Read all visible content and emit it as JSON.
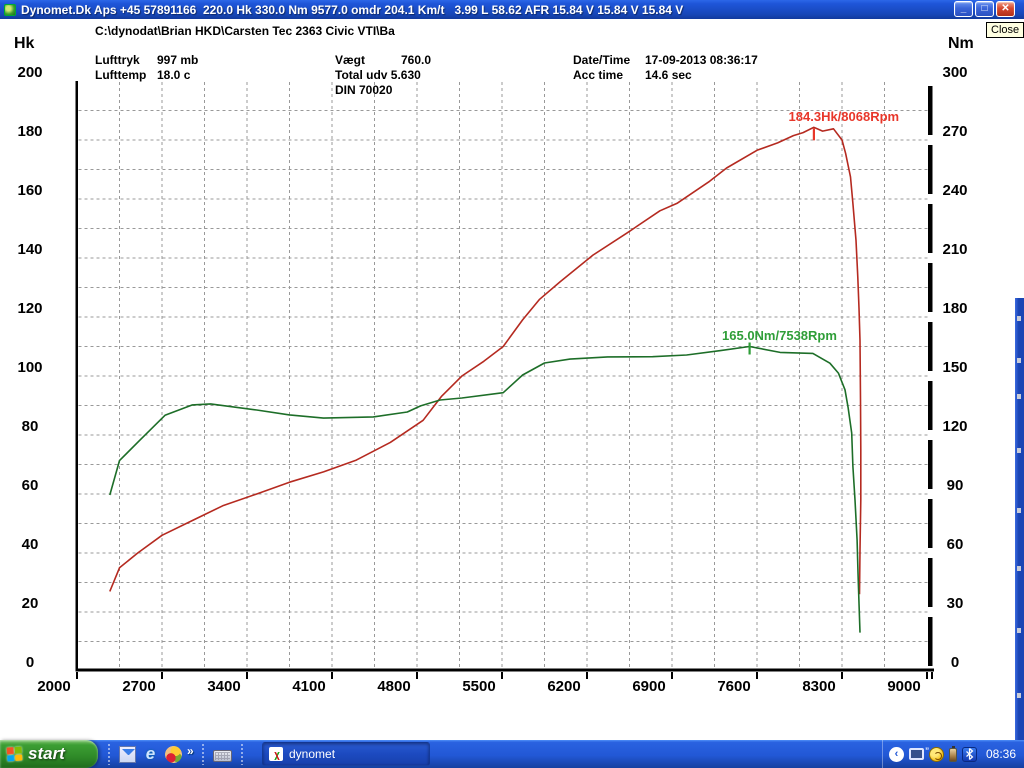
{
  "window": {
    "title": "Dynomet.Dk Aps +45 57891166  220.0 Hk 330.0 Nm 9577.0 omdr 204.1 Km/t   3.99 L 58.62 AFR 15.84 V 15.84 V 15.84 V",
    "minimize_glyph": "_",
    "maximize_glyph": "□",
    "close_glyph": "✕",
    "close_tooltip": "Close"
  },
  "header": {
    "path": "C:\\dynodat\\Brian HKD\\Carsten Tec 2363 Civic VTI\\Ba",
    "lufttryk_label": "Lufttryk",
    "lufttryk_value": "997 mb",
    "lufttemp_label": "Lufttemp",
    "lufttemp_value": "18.0 c",
    "vaegt_label": "Vægt",
    "vaegt_value": "760.0",
    "total_udv_label": "Total udv",
    "total_udv_value": "5.630",
    "din_label": "DIN 70020",
    "datetime_label": "Date/Time",
    "datetime_value": "17-09-2013 08:36:17",
    "acctime_label": "Acc time",
    "acctime_value": "14.6 sec"
  },
  "chart_data": {
    "type": "line",
    "x_axis": {
      "unit": "Rpm",
      "range": [
        2000,
        9030
      ],
      "ticks": [
        2000,
        2700,
        3400,
        4100,
        4800,
        5500,
        6200,
        6900,
        7600,
        8300,
        9000
      ],
      "minor_step": 350
    },
    "y_axis_left": {
      "label": "Hk",
      "range": [
        0,
        200
      ],
      "ticks": [
        0,
        20,
        40,
        60,
        80,
        100,
        120,
        140,
        160,
        180,
        200
      ],
      "minor_step": 10
    },
    "y_axis_right": {
      "label": "Nm",
      "range": [
        0,
        300
      ],
      "ticks": [
        0,
        30,
        60,
        90,
        120,
        150,
        180,
        210,
        240,
        270,
        300
      ],
      "minor_step": 15
    },
    "grid": true,
    "series": [
      {
        "name": "power",
        "unit": "Hk",
        "axis": "left",
        "color": "#b52a20",
        "label_color": "#e8372a",
        "peak_label": "184.3Hk/8068Rpm",
        "peak": {
          "rpm": 8068,
          "value": 184.3
        },
        "points": [
          [
            2270,
            27
          ],
          [
            2350,
            35
          ],
          [
            2500,
            40
          ],
          [
            2700,
            46
          ],
          [
            2950,
            51
          ],
          [
            3200,
            56
          ],
          [
            3480,
            60
          ],
          [
            3750,
            64
          ],
          [
            4030,
            67.5
          ],
          [
            4300,
            71.5
          ],
          [
            4580,
            77.5
          ],
          [
            4850,
            85
          ],
          [
            5000,
            93
          ],
          [
            5170,
            100
          ],
          [
            5350,
            105
          ],
          [
            5510,
            110
          ],
          [
            5670,
            119
          ],
          [
            5810,
            126
          ],
          [
            5980,
            132
          ],
          [
            6250,
            141
          ],
          [
            6530,
            148.5
          ],
          [
            6800,
            156
          ],
          [
            6940,
            158.5
          ],
          [
            7210,
            166
          ],
          [
            7350,
            170.5
          ],
          [
            7600,
            176.5
          ],
          [
            7770,
            179
          ],
          [
            7900,
            181.5
          ],
          [
            7980,
            182.5
          ],
          [
            8068,
            184.3
          ],
          [
            8140,
            183
          ],
          [
            8230,
            183.8
          ],
          [
            8300,
            180
          ],
          [
            8330,
            175.5
          ],
          [
            8370,
            167.5
          ],
          [
            8390,
            158.5
          ],
          [
            8415,
            146
          ],
          [
            8430,
            133.5
          ],
          [
            8440,
            123
          ],
          [
            8448,
            112
          ],
          [
            8452,
            92
          ],
          [
            8455,
            75
          ],
          [
            8455,
            58
          ],
          [
            8448,
            41
          ],
          [
            8444,
            26
          ]
        ]
      },
      {
        "name": "torque",
        "unit": "Nm",
        "axis": "right",
        "color": "#1d6e28",
        "label_color": "#2f9e38",
        "peak_label": "165.0Nm/7538Rpm",
        "peak": {
          "rpm": 7538,
          "value": 165.0
        },
        "points": [
          [
            2270,
            89.5
          ],
          [
            2350,
            107
          ],
          [
            2520,
            117.5
          ],
          [
            2725,
            130
          ],
          [
            2950,
            135.3
          ],
          [
            3100,
            135.8
          ],
          [
            3480,
            132.7
          ],
          [
            3750,
            130.2
          ],
          [
            4030,
            128.6
          ],
          [
            4440,
            129.2
          ],
          [
            4720,
            131.7
          ],
          [
            4830,
            134.8
          ],
          [
            4990,
            137.8
          ],
          [
            5170,
            138.8
          ],
          [
            5510,
            141.5
          ],
          [
            5670,
            150.5
          ],
          [
            5850,
            156.6
          ],
          [
            6060,
            158.6
          ],
          [
            6370,
            159.7
          ],
          [
            6740,
            159.8
          ],
          [
            7020,
            160.7
          ],
          [
            7300,
            162.9
          ],
          [
            7538,
            165
          ],
          [
            7790,
            162
          ],
          [
            8060,
            161.5
          ],
          [
            8200,
            156.5
          ],
          [
            8270,
            151.5
          ],
          [
            8325,
            143
          ],
          [
            8350,
            134
          ],
          [
            8380,
            121
          ],
          [
            8390,
            104
          ],
          [
            8407,
            87
          ],
          [
            8424,
            66.5
          ],
          [
            8432,
            50
          ],
          [
            8440,
            34.5
          ],
          [
            8448,
            19.5
          ]
        ]
      }
    ]
  },
  "taskbar": {
    "start_label": "start",
    "quick_launch_overflow": "»",
    "task_button_label": "dynomet",
    "clock": "08:36",
    "icons": {
      "quick_launch": [
        "outlook-express-icon",
        "internet-explorer-icon",
        "hand-icon",
        "keyboard-icon"
      ],
      "tray": [
        "hide-icons-chevron",
        "display-icon",
        "yellow-status-icon",
        "battery-icon",
        "bluetooth-icon"
      ]
    }
  },
  "colors": {
    "titlebar": "#1e55d8",
    "taskbar": "#2258d6",
    "start_green": "#2f8a28",
    "power_curve": "#b52a20",
    "torque_curve": "#1d6e28",
    "grid": "#999999",
    "tooltip_bg": "#ffffe1"
  }
}
